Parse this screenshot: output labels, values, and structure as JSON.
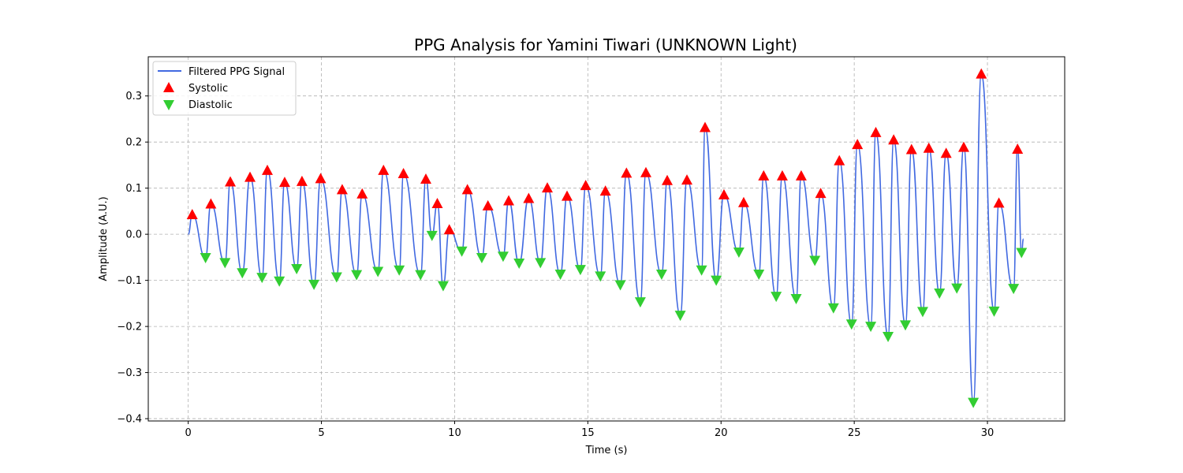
{
  "chart_data": {
    "type": "line",
    "title": "PPG Analysis for Yamini Tiwari (UNKNOWN Light)",
    "xlabel": "Time (s)",
    "ylabel": "Amplitude (A.U.)",
    "xlim": [
      -1.5,
      32.9
    ],
    "ylim": [
      -0.405,
      0.385
    ],
    "xticks": [
      0,
      5,
      10,
      15,
      20,
      25,
      30
    ],
    "xtick_labels": [
      "0",
      "5",
      "10",
      "15",
      "20",
      "25",
      "30"
    ],
    "yticks": [
      -0.4,
      -0.3,
      -0.2,
      -0.1,
      0.0,
      0.1,
      0.2,
      0.3
    ],
    "ytick_labels": [
      "−0.4",
      "−0.3",
      "−0.2",
      "−0.1",
      "0.0",
      "0.1",
      "0.2",
      "0.3"
    ],
    "grid": true,
    "legend_position": "top-left",
    "series": [
      {
        "name": "Filtered PPG Signal",
        "kind": "line",
        "color": "#4169e1"
      },
      {
        "name": "Systolic",
        "kind": "marker-up",
        "color": "#ff0000",
        "x": [
          0.15,
          0.85,
          1.58,
          2.32,
          2.97,
          3.62,
          4.27,
          4.97,
          5.78,
          6.53,
          7.33,
          8.08,
          8.92,
          9.35,
          9.8,
          10.48,
          11.25,
          12.03,
          12.78,
          13.48,
          14.22,
          14.92,
          15.66,
          16.45,
          17.18,
          17.98,
          18.72,
          19.4,
          20.11,
          20.85,
          21.6,
          22.3,
          23.01,
          23.74,
          24.44,
          25.12,
          25.81,
          26.48,
          27.15,
          27.8,
          28.45,
          29.11,
          29.77,
          30.43,
          31.13
        ],
        "y": [
          0.043,
          0.066,
          0.114,
          0.124,
          0.139,
          0.113,
          0.115,
          0.121,
          0.097,
          0.088,
          0.139,
          0.132,
          0.12,
          0.067,
          0.01,
          0.097,
          0.062,
          0.073,
          0.078,
          0.101,
          0.083,
          0.106,
          0.094,
          0.133,
          0.134,
          0.117,
          0.118,
          0.232,
          0.086,
          0.069,
          0.127,
          0.127,
          0.127,
          0.089,
          0.16,
          0.195,
          0.221,
          0.205,
          0.184,
          0.187,
          0.176,
          0.189,
          0.348,
          0.068,
          0.185
        ]
      },
      {
        "name": "Diastolic",
        "kind": "marker-down",
        "color": "#32cd32",
        "x": [
          0.65,
          1.38,
          2.03,
          2.77,
          3.42,
          4.07,
          4.72,
          5.57,
          6.32,
          7.12,
          7.92,
          8.72,
          9.15,
          9.57,
          10.27,
          11.02,
          11.82,
          12.42,
          13.22,
          13.97,
          14.72,
          15.47,
          16.22,
          16.97,
          17.77,
          18.47,
          19.27,
          19.82,
          20.67,
          21.42,
          22.07,
          22.82,
          23.52,
          24.22,
          24.9,
          25.62,
          26.27,
          26.92,
          27.57,
          28.2,
          28.85,
          29.47,
          30.25,
          30.98,
          31.28
        ],
        "y": [
          -0.051,
          -0.062,
          -0.084,
          -0.094,
          -0.102,
          -0.075,
          -0.109,
          -0.093,
          -0.088,
          -0.081,
          -0.078,
          -0.088,
          -0.003,
          -0.112,
          -0.037,
          -0.051,
          -0.048,
          -0.063,
          -0.062,
          -0.087,
          -0.077,
          -0.091,
          -0.11,
          -0.147,
          -0.087,
          -0.176,
          -0.078,
          -0.1,
          -0.039,
          -0.087,
          -0.135,
          -0.14,
          -0.057,
          -0.16,
          -0.195,
          -0.2,
          -0.222,
          -0.197,
          -0.168,
          -0.128,
          -0.117,
          -0.365,
          -0.167,
          -0.118,
          -0.04
        ]
      }
    ]
  }
}
